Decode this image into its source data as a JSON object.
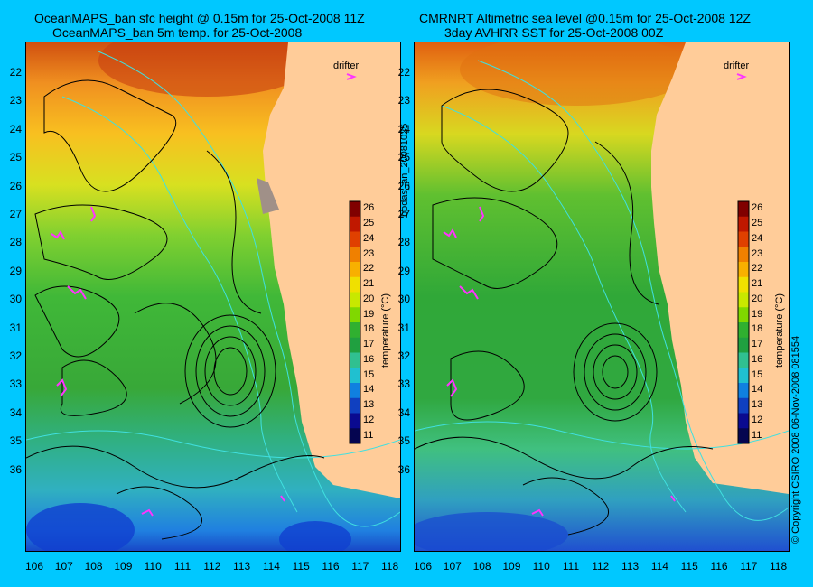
{
  "left": {
    "title1": "OceanMAPS_ban sfc height @ 0.15m for 25-Oct-2008 11Z",
    "title2": "OceanMAPS_ban 5m temp. for 25-Oct-2008"
  },
  "right": {
    "title1": "CMRNRT Altimetric sea level  @0.15m  for 25-Oct-2008 12Z",
    "title2": "3day AVHRR SST for 25-Oct-2008 00Z"
  },
  "drifter_label": "drifter",
  "colorbar_label": "temperature (°C)",
  "colorbar_ticks": [
    "26",
    "25",
    "24",
    "23",
    "22",
    "21",
    "20",
    "19",
    "18",
    "17",
    "16",
    "15",
    "14",
    "13",
    "12",
    "11"
  ],
  "lat_ticks": [
    "22",
    "23",
    "24",
    "25",
    "26",
    "27",
    "28",
    "29",
    "30",
    "31",
    "32",
    "33",
    "34",
    "35",
    "36"
  ],
  "lon_ticks": [
    "106",
    "107",
    "108",
    "109",
    "110",
    "111",
    "112",
    "113",
    "114",
    "115",
    "116",
    "117",
    "118"
  ],
  "side_label": "bodas_an_20081025",
  "copyright": "© Copyright CSIRO 2008   06-Nov-2008 081554",
  "colors": {
    "background": "#00c8ff",
    "land": "#ffcc99",
    "contour": "#000000",
    "isobath": "#40e0e0",
    "drifter": "#ff33ff"
  },
  "colormap": [
    "#800000",
    "#c01800",
    "#e04000",
    "#f08000",
    "#f8b000",
    "#f0e000",
    "#c8e800",
    "#80d800",
    "#30b030",
    "#20a040",
    "#30c090",
    "#20c0d0",
    "#1080e0",
    "#1040c0",
    "#0a0a90",
    "#050550"
  ]
}
